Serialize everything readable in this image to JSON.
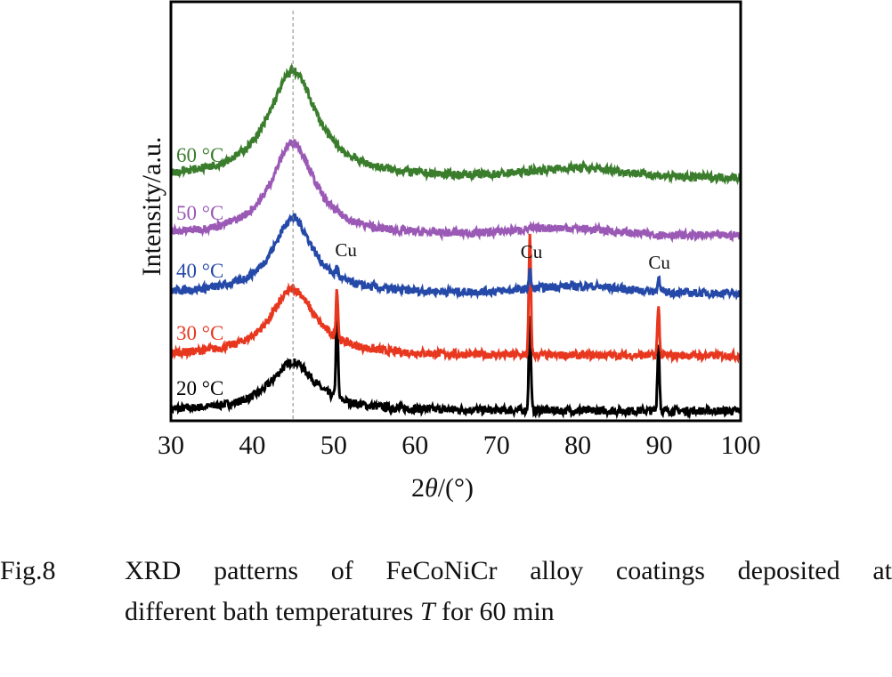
{
  "chart_data": {
    "type": "line",
    "title": "",
    "xlabel": "2θ/(°)",
    "ylabel": "Intensity/a.u.",
    "xlim": [
      30,
      100
    ],
    "xticks": [
      30,
      40,
      50,
      60,
      70,
      80,
      90,
      100
    ],
    "reference_line_x": 45,
    "grid": false,
    "legend": "inline labels at left",
    "series": [
      {
        "name": "20 °C",
        "color": "#000000",
        "offset": 0,
        "broad_peak": {
          "center": 45,
          "height": 0.55,
          "width": 3.3
        },
        "peaks": [
          {
            "x": 50.4,
            "height": 0.95
          },
          {
            "x": 74.1,
            "height": 1.05
          },
          {
            "x": 89.9,
            "height": 0.75
          }
        ]
      },
      {
        "name": "30 °C",
        "color": "#e8371f",
        "offset": 1,
        "broad_peak": {
          "center": 45,
          "height": 0.75,
          "width": 3.3
        },
        "peaks": [
          {
            "x": 50.4,
            "height": 0.55
          },
          {
            "x": 74.1,
            "height": 1.35
          },
          {
            "x": 89.9,
            "height": 0.55
          }
        ]
      },
      {
        "name": "40 °C",
        "color": "#2549a8",
        "offset": 2,
        "broad_peak": {
          "center": 45,
          "height": 0.85,
          "width": 3.0
        },
        "peaks": [
          {
            "x": 50.4,
            "height": 0.1
          },
          {
            "x": 74.1,
            "height": 0.2
          },
          {
            "x": 89.9,
            "height": 0.17
          }
        ],
        "hump": {
          "center": 80,
          "height": 0.08,
          "width": 8
        }
      },
      {
        "name": "50 °C",
        "color": "#9b59b6",
        "offset": 3,
        "broad_peak": {
          "center": 45,
          "height": 1.05,
          "width": 3.2
        },
        "peaks": [],
        "hump": {
          "center": 78,
          "height": 0.08,
          "width": 8
        }
      },
      {
        "name": "60 °C",
        "color": "#3a7d2c",
        "offset": 4,
        "broad_peak": {
          "center": 45,
          "height": 1.2,
          "width": 3.6
        },
        "peaks": [],
        "hump": {
          "center": 80,
          "height": 0.1,
          "width": 8
        }
      }
    ],
    "annotations": [
      {
        "text": "Cu",
        "x": 51.5,
        "series": "40 °C"
      },
      {
        "text": "Cu",
        "x": 74.3,
        "series": "50 °C"
      },
      {
        "text": "Cu",
        "x": 90,
        "series": "40 °C"
      }
    ]
  },
  "caption": {
    "fig_label": "Fig.8",
    "line1": "XRD patterns of FeCoNiCr alloy coatings deposited at",
    "line2_pre": "different bath temperatures ",
    "line2_italic": "T",
    "line2_post": " for 60 min"
  }
}
